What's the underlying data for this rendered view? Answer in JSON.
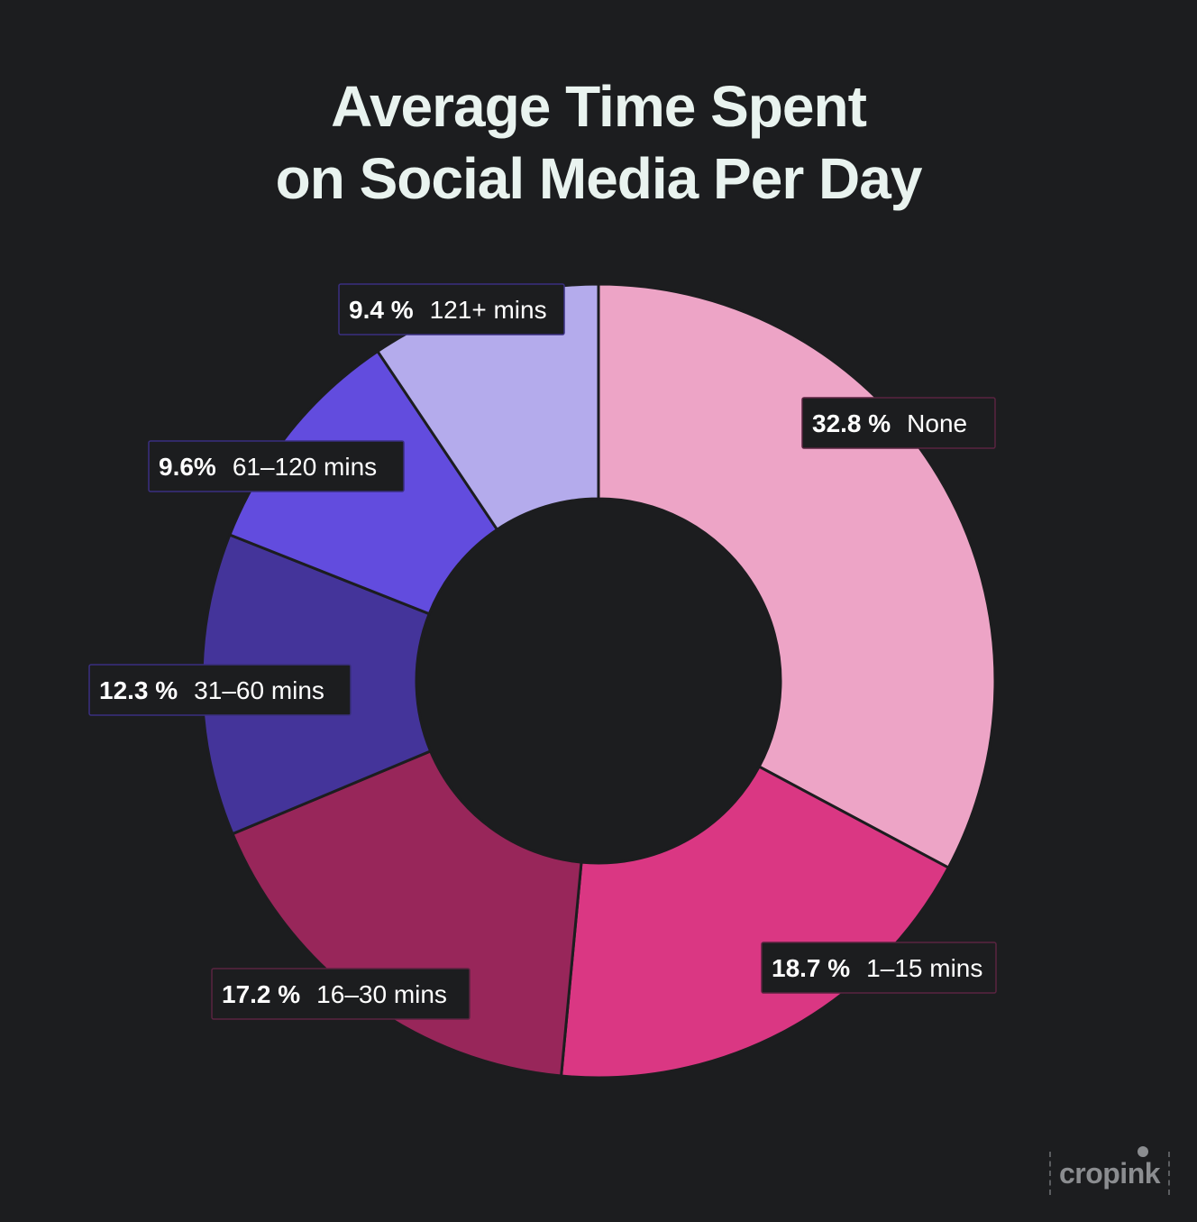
{
  "title": {
    "line1": "Average Time Spent",
    "line2": "on Social Media Per Day"
  },
  "logo": {
    "text": "cropink"
  },
  "colors": {
    "background": "#1c1d1f",
    "title": "#e9f3ef"
  },
  "chart_data": {
    "type": "pie",
    "donut": true,
    "start": "top, clockwise",
    "slices": [
      {
        "category": "None",
        "value": 32.8,
        "label_pct": "32.8 %",
        "color": "#eda4c6",
        "label_border": "#5a2440"
      },
      {
        "category": "1–15 mins",
        "value": 18.7,
        "label_pct": "18.7 %",
        "color": "#da3783",
        "label_border": "#5a2440"
      },
      {
        "category": "16–30 mins",
        "value": 17.2,
        "label_pct": "17.2 %",
        "color": "#98265a",
        "label_border": "#5a2440"
      },
      {
        "category": "31–60 mins",
        "value": 12.3,
        "label_pct": "12.3 %",
        "color": "#44349a",
        "label_border": "#3a2f80"
      },
      {
        "category": "61–120 mins",
        "value": 9.6,
        "label_pct": "9.6%",
        "color": "#624cde",
        "label_border": "#3a2f80"
      },
      {
        "category": "121+ mins",
        "value": 9.4,
        "label_pct": "9.4 %",
        "color": "#b4abec",
        "label_border": "#3a2f80"
      }
    ]
  }
}
